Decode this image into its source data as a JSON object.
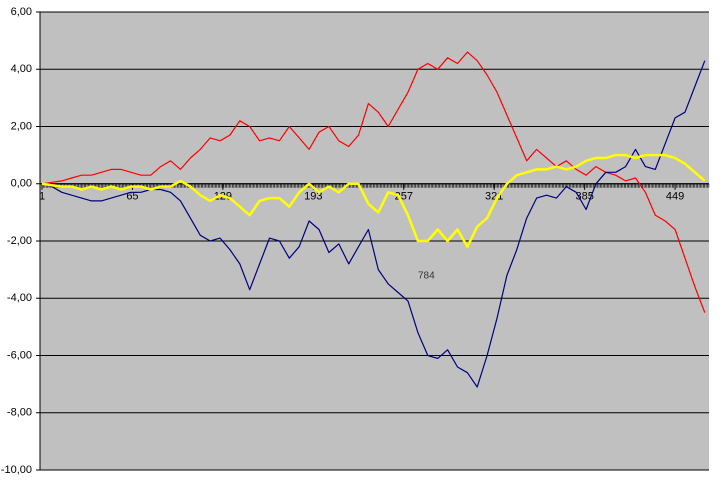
{
  "chart_data": {
    "type": "line",
    "x": [
      1,
      8,
      15,
      22,
      29,
      36,
      43,
      50,
      57,
      64,
      71,
      78,
      85,
      92,
      99,
      106,
      113,
      120,
      127,
      134,
      141,
      148,
      155,
      162,
      169,
      176,
      183,
      190,
      197,
      204,
      211,
      218,
      225,
      232,
      239,
      246,
      253,
      260,
      267,
      274,
      281,
      288,
      295,
      302,
      309,
      316,
      323,
      330,
      337,
      344,
      351,
      358,
      365,
      372,
      379,
      386,
      393,
      400,
      407,
      414,
      421,
      428,
      435,
      442,
      449,
      456,
      463,
      470
    ],
    "series": [
      {
        "color": "#ff0000",
        "values": [
          0,
          0.05,
          0.1,
          0.2,
          0.3,
          0.3,
          0.4,
          0.5,
          0.5,
          0.4,
          0.3,
          0.3,
          0.6,
          0.8,
          0.5,
          0.9,
          1.2,
          1.6,
          1.5,
          1.7,
          2.2,
          2.0,
          1.5,
          1.6,
          1.5,
          2.0,
          1.6,
          1.2,
          1.8,
          2.0,
          1.5,
          1.3,
          1.7,
          2.8,
          2.5,
          2.0,
          2.6,
          3.2,
          4.0,
          4.2,
          4.0,
          4.4,
          4.2,
          4.6,
          4.3,
          3.8,
          3.2,
          2.4,
          1.6,
          0.8,
          1.2,
          0.9,
          0.6,
          0.8,
          0.5,
          0.3,
          0.6,
          0.4,
          0.3,
          0.1,
          0.2,
          -0.3,
          -1.1,
          -1.3,
          -1.6,
          -2.6,
          -3.6,
          -4.5
        ]
      },
      {
        "color": "#000080",
        "values": [
          0,
          -0.1,
          -0.3,
          -0.4,
          -0.5,
          -0.6,
          -0.6,
          -0.5,
          -0.4,
          -0.3,
          -0.3,
          -0.2,
          -0.2,
          -0.3,
          -0.6,
          -1.2,
          -1.8,
          -2.0,
          -1.9,
          -2.3,
          -2.8,
          -3.7,
          -2.8,
          -1.9,
          -2.0,
          -2.6,
          -2.2,
          -1.3,
          -1.6,
          -2.4,
          -2.1,
          -2.8,
          -2.2,
          -1.6,
          -3.0,
          -3.5,
          -3.8,
          -4.1,
          -5.2,
          -6.0,
          -6.1,
          -5.8,
          -6.4,
          -6.6,
          -7.1,
          -6.0,
          -4.7,
          -3.2,
          -2.3,
          -1.2,
          -0.5,
          -0.4,
          -0.5,
          -0.1,
          -0.3,
          -0.9,
          0,
          0.4,
          0.4,
          0.6,
          1.2,
          0.6,
          0.5,
          1.4,
          2.3,
          2.5,
          3.4,
          4.3
        ]
      },
      {
        "color": "#ffff00",
        "values": [
          0,
          -0.05,
          -0.1,
          -0.1,
          -0.2,
          -0.1,
          -0.2,
          -0.1,
          -0.2,
          -0.1,
          -0.1,
          -0.2,
          -0.1,
          -0.1,
          0.1,
          -0.1,
          -0.4,
          -0.6,
          -0.4,
          -0.5,
          -0.8,
          -1.1,
          -0.6,
          -0.5,
          -0.5,
          -0.8,
          -0.3,
          0,
          -0.3,
          -0.1,
          -0.3,
          0,
          0,
          -0.7,
          -1.0,
          -0.3,
          -0.4,
          -1.1,
          -2.0,
          -2.0,
          -1.6,
          -2.0,
          -1.6,
          -2.2,
          -1.5,
          -1.2,
          -0.5,
          0,
          0.3,
          0.4,
          0.5,
          0.5,
          0.6,
          0.5,
          0.6,
          0.8,
          0.9,
          0.9,
          1.0,
          1.0,
          0.9,
          1.0,
          1.0,
          1.0,
          0.9,
          0.7,
          0.4,
          0.1
        ]
      }
    ],
    "xlim": [
      1,
      473
    ],
    "xticks": [
      1,
      65,
      129,
      193,
      257,
      321,
      385,
      449
    ],
    "ylim": [
      -10,
      6
    ],
    "yticks": [
      {
        "value": -10,
        "label": "-10,00"
      },
      {
        "value": -8,
        "label": "-8,00"
      },
      {
        "value": -6,
        "label": "-6,00"
      },
      {
        "value": -4,
        "label": "-4,00"
      },
      {
        "value": -2,
        "label": "-2,00"
      },
      {
        "value": 0,
        "label": "0,00"
      },
      {
        "value": 2,
        "label": "2,00"
      },
      {
        "value": 4,
        "label": "4,00"
      },
      {
        "value": 6,
        "label": "6,00"
      }
    ],
    "grid": true,
    "annotation": "784"
  }
}
